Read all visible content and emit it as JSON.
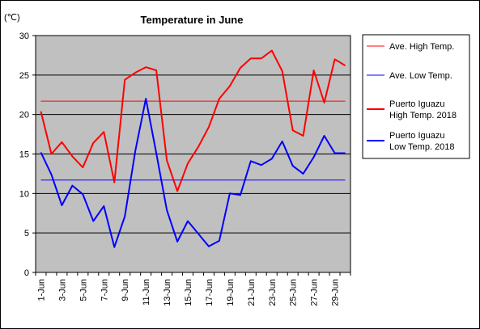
{
  "chart_data": {
    "type": "line",
    "title": "Temperature in June",
    "unit": "(℃)",
    "ylim": [
      0,
      30
    ],
    "yticks": [
      0,
      5,
      10,
      15,
      20,
      25,
      30
    ],
    "grid": true,
    "legend_position": "right",
    "x": [
      "1-Jun",
      "2-Jun",
      "3-Jun",
      "4-Jun",
      "5-Jun",
      "6-Jun",
      "7-Jun",
      "8-Jun",
      "9-Jun",
      "10-Jun",
      "11-Jun",
      "12-Jun",
      "13-Jun",
      "14-Jun",
      "15-Jun",
      "16-Jun",
      "17-Jun",
      "18-Jun",
      "19-Jun",
      "20-Jun",
      "21-Jun",
      "22-Jun",
      "23-Jun",
      "24-Jun",
      "25-Jun",
      "26-Jun",
      "27-Jun",
      "28-Jun",
      "29-Jun",
      "30-Jun"
    ],
    "xtick_labels": [
      "1-Jun",
      "3-Jun",
      "5-Jun",
      "7-Jun",
      "9-Jun",
      "11-Jun",
      "13-Jun",
      "15-Jun",
      "17-Jun",
      "19-Jun",
      "21-Jun",
      "23-Jun",
      "25-Jun",
      "27-Jun",
      "29-Jun"
    ],
    "series": [
      {
        "name": "Ave. High Temp.",
        "legend_lines": [
          "Ave. High Temp."
        ],
        "color": "#ff0000",
        "width": 1,
        "values": [
          21.7,
          21.7,
          21.7,
          21.7,
          21.7,
          21.7,
          21.7,
          21.7,
          21.7,
          21.7,
          21.7,
          21.7,
          21.7,
          21.7,
          21.7,
          21.7,
          21.7,
          21.7,
          21.7,
          21.7,
          21.7,
          21.7,
          21.7,
          21.7,
          21.7,
          21.7,
          21.7,
          21.7,
          21.7,
          21.7
        ]
      },
      {
        "name": "Ave. Low Temp.",
        "legend_lines": [
          "Ave. Low Temp."
        ],
        "color": "#0000ff",
        "width": 1,
        "values": [
          11.7,
          11.7,
          11.7,
          11.7,
          11.7,
          11.7,
          11.7,
          11.7,
          11.7,
          11.7,
          11.7,
          11.7,
          11.7,
          11.7,
          11.7,
          11.7,
          11.7,
          11.7,
          11.7,
          11.7,
          11.7,
          11.7,
          11.7,
          11.7,
          11.7,
          11.7,
          11.7,
          11.7,
          11.7,
          11.7
        ]
      },
      {
        "name": "Puerto Iguazu High Temp. 2018",
        "legend_lines": [
          "Puerto Iguazu",
          "High Temp. 2018"
        ],
        "color": "#ff0000",
        "width": 2,
        "values": [
          20.4,
          15.0,
          16.5,
          14.7,
          13.3,
          16.4,
          17.8,
          11.4,
          24.4,
          25.3,
          26.0,
          25.6,
          14.2,
          10.3,
          13.8,
          15.9,
          18.4,
          22.0,
          23.6,
          25.9,
          27.1,
          27.1,
          28.1,
          25.5,
          18.0,
          17.3,
          25.6,
          21.5,
          27.0,
          26.2
        ]
      },
      {
        "name": "Puerto Iguazu Low Temp. 2018",
        "legend_lines": [
          "Puerto Iguazu",
          "Low Temp. 2018"
        ],
        "color": "#0000ff",
        "width": 2,
        "values": [
          15.2,
          12.4,
          8.5,
          11.0,
          9.9,
          6.5,
          8.4,
          3.2,
          7.1,
          15.4,
          22.0,
          15.1,
          7.9,
          3.9,
          6.5,
          4.9,
          3.3,
          4.0,
          10.0,
          9.8,
          14.1,
          13.6,
          14.4,
          16.6,
          13.5,
          12.5,
          14.6,
          17.3,
          15.1,
          15.1
        ]
      }
    ]
  }
}
